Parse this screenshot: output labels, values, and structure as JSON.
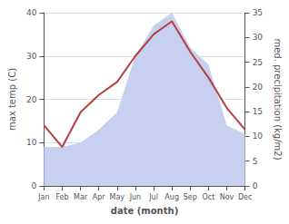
{
  "chart_data": {
    "type": "line",
    "categories": [
      "Jan",
      "Feb",
      "Mar",
      "Apr",
      "May",
      "Jun",
      "Jul",
      "Aug",
      "Sep",
      "Oct",
      "Nov",
      "Dec"
    ],
    "series": [
      {
        "type": "area",
        "color": "#c8d0f0",
        "values": [
          9,
          9,
          10,
          13,
          17,
          30,
          37,
          40,
          32,
          28,
          14,
          12
        ]
      },
      {
        "type": "line",
        "color": "#b34040",
        "values": [
          14,
          9,
          17,
          21,
          24,
          30,
          35,
          38,
          31,
          25,
          18,
          13
        ]
      }
    ],
    "xlabel": "date (month)",
    "ylabel": "max temp (C)",
    "y2label": "med. precipitation (kg/m2)",
    "ylim": [
      0,
      40
    ],
    "yticks": [
      0,
      10,
      20,
      30,
      40
    ],
    "y2lim": [
      0,
      35
    ],
    "y2ticks": [
      0,
      5,
      10,
      15,
      20,
      25,
      30,
      35
    ],
    "grid": true
  }
}
